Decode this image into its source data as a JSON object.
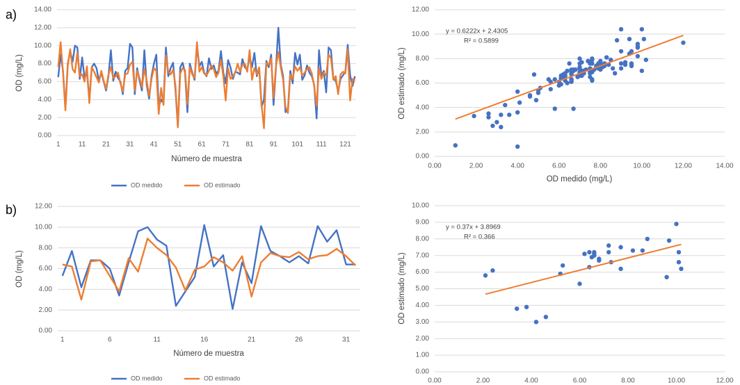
{
  "chart_data": [
    {
      "type": "line",
      "panel_label": "a)",
      "x_label": "Número de muestra",
      "y_label": "OD (mg/L)",
      "categories": [
        "1",
        null,
        null,
        null,
        null,
        null,
        null,
        null,
        null,
        null,
        "11",
        null,
        null,
        null,
        null,
        null,
        null,
        null,
        null,
        null,
        "21",
        null,
        null,
        null,
        null,
        null,
        null,
        null,
        null,
        null,
        "31",
        null,
        null,
        null,
        null,
        null,
        null,
        null,
        null,
        null,
        "41",
        null,
        null,
        null,
        null,
        null,
        null,
        null,
        null,
        null,
        "51",
        null,
        null,
        null,
        null,
        null,
        null,
        null,
        null,
        null,
        "61",
        null,
        null,
        null,
        null,
        null,
        null,
        null,
        null,
        null,
        "71",
        null,
        null,
        null,
        null,
        null,
        null,
        null,
        null,
        null,
        "81",
        null,
        null,
        null,
        null,
        null,
        null,
        null,
        null,
        null,
        "91",
        null,
        null,
        null,
        null,
        null,
        null,
        null,
        null,
        null,
        "101",
        null,
        null,
        null,
        null,
        null,
        null,
        null,
        null,
        null,
        "111",
        null,
        null,
        null,
        null,
        null,
        null,
        null,
        null,
        null,
        "121",
        null,
        null,
        null,
        null
      ],
      "series": [
        {
          "name": "OD medido",
          "color": "#4472c4",
          "values": [
            6.5,
            9.0,
            7.2,
            3.0,
            8.0,
            9.4,
            8.2,
            10.0,
            9.8,
            6.3,
            8.7,
            6.4,
            7.1,
            4.0,
            7.6,
            8.0,
            7.5,
            6.1,
            7.0,
            6.0,
            5.0,
            6.6,
            9.5,
            6.1,
            7.1,
            6.4,
            6.0,
            4.6,
            7.2,
            7.5,
            10.2,
            9.8,
            4.6,
            7.5,
            6.1,
            5.0,
            9.5,
            5.6,
            4.1,
            6.6,
            8.0,
            9.0,
            3.2,
            4.0,
            3.6,
            9.8,
            6.6,
            7.5,
            8.1,
            5.1,
            1.0,
            7.6,
            8.1,
            7.0,
            2.6,
            8.0,
            7.0,
            6.2,
            10.0,
            7.7,
            8.2,
            7.0,
            6.6,
            8.6,
            7.4,
            7.8,
            6.9,
            7.2,
            9.4,
            7.0,
            5.8,
            8.4,
            7.6,
            6.3,
            7.1,
            7.0,
            6.8,
            8.5,
            7.6,
            7.3,
            8.8,
            7.6,
            9.2,
            6.6,
            7.5,
            3.2,
            4.0,
            8.3,
            7.6,
            9.0,
            3.4,
            7.5,
            12.0,
            7.9,
            6.6,
            2.6,
            2.8,
            7.2,
            5.8,
            9.2,
            7.9,
            9.0,
            6.2,
            6.7,
            7.8,
            7.0,
            6.6,
            5.6,
            1.9,
            9.5,
            6.6,
            7.2,
            4.8,
            9.8,
            9.5,
            6.3,
            6.1,
            4.9,
            6.3,
            6.7,
            7.1,
            10.1,
            6.7,
            5.5,
            6.6
          ]
        },
        {
          "name": "OD estimado",
          "color": "#ed7d31",
          "values": [
            7.6,
            10.4,
            7.0,
            2.8,
            7.8,
            9.6,
            7.4,
            7.0,
            9.2,
            6.6,
            6.8,
            6.0,
            7.7,
            3.6,
            7.6,
            7.1,
            6.5,
            5.9,
            7.2,
            6.1,
            5.2,
            6.8,
            7.6,
            6.4,
            6.6,
            7.0,
            5.8,
            4.9,
            6.8,
            6.9,
            7.9,
            8.2,
            5.0,
            7.2,
            6.4,
            5.4,
            7.4,
            6.1,
            4.4,
            6.3,
            7.5,
            7.2,
            2.4,
            5.3,
            3.4,
            8.9,
            7.1,
            6.8,
            7.3,
            5.6,
            0.9,
            6.9,
            7.5,
            7.3,
            3.5,
            7.6,
            6.8,
            6.4,
            10.4,
            7.1,
            7.6,
            6.9,
            6.7,
            7.2,
            7.8,
            7.4,
            6.5,
            7.0,
            8.4,
            6.6,
            3.9,
            7.5,
            6.3,
            6.6,
            7.0,
            8.0,
            7.1,
            7.9,
            8.0,
            7.1,
            9.5,
            6.2,
            7.5,
            6.8,
            7.6,
            3.4,
            0.8,
            8.1,
            7.9,
            8.6,
            4.2,
            7.7,
            9.3,
            7.6,
            6.2,
            3.2,
            2.5,
            6.8,
            6.3,
            7.7,
            7.2,
            7.6,
            6.7,
            7.0,
            7.4,
            7.6,
            6.9,
            5.5,
            3.3,
            7.5,
            6.3,
            7.0,
            6.7,
            9.0,
            8.6,
            6.2,
            6.6,
            4.6,
            6.8,
            7.1,
            6.9,
            9.6,
            3.9,
            6.3,
            6.1
          ]
        }
      ],
      "ylim": [
        0,
        14
      ],
      "yticks": [
        {
          "value": 0,
          "label": "0.00"
        },
        {
          "value": 2,
          "label": "2.00"
        },
        {
          "value": 4,
          "label": "4.00"
        },
        {
          "value": 6,
          "label": "6.00"
        },
        {
          "value": 8,
          "label": "8.00"
        },
        {
          "value": 10,
          "label": "10.00"
        },
        {
          "value": 12,
          "label": "12.00"
        },
        {
          "value": 14,
          "label": "14.00"
        }
      ],
      "grid": true,
      "legend": "bottom"
    },
    {
      "type": "scatter",
      "x_label": "OD medido (mg/L)",
      "y_label": "OD estimado (mg/L)",
      "color": "#4472c4",
      "x": [
        6.5,
        9.0,
        7.2,
        3.0,
        8.0,
        9.4,
        8.2,
        10.0,
        9.8,
        6.3,
        8.7,
        6.4,
        7.1,
        4.0,
        7.6,
        8.0,
        7.5,
        6.1,
        7.0,
        6.0,
        5.0,
        6.6,
        9.5,
        6.1,
        7.1,
        6.4,
        6.0,
        4.6,
        7.2,
        7.5,
        10.2,
        9.8,
        4.6,
        7.5,
        6.1,
        5.0,
        9.5,
        5.6,
        4.1,
        6.6,
        8.0,
        9.0,
        3.2,
        4.0,
        3.6,
        9.8,
        6.6,
        7.5,
        8.1,
        5.1,
        1.0,
        7.6,
        8.1,
        7.0,
        2.6,
        8.0,
        7.0,
        6.2,
        10.0,
        7.7,
        8.2,
        7.0,
        6.6,
        8.6,
        7.4,
        7.8,
        6.9,
        7.2,
        9.4,
        7.0,
        5.8,
        8.4,
        7.6,
        6.3,
        7.1,
        7.0,
        6.8,
        8.5,
        7.6,
        7.3,
        8.8,
        7.6,
        9.2,
        6.6,
        7.5,
        3.2,
        4.0,
        8.3,
        7.6,
        9.0,
        3.4,
        7.5,
        12.0,
        7.9,
        6.6,
        2.6,
        2.8,
        7.2,
        5.8,
        9.2,
        7.9,
        9.0,
        6.2,
        6.7,
        7.8,
        7.0,
        6.6,
        5.6,
        1.9,
        9.5,
        6.6,
        7.2,
        4.8,
        9.8,
        9.5,
        6.3,
        6.1,
        4.9,
        6.3,
        6.7,
        7.1,
        10.1,
        6.7,
        5.5,
        6.6
      ],
      "y": [
        7.6,
        10.4,
        7.0,
        2.8,
        7.8,
        9.6,
        7.4,
        7.0,
        9.2,
        6.6,
        6.8,
        6.0,
        7.7,
        3.6,
        7.6,
        7.1,
        6.5,
        5.9,
        7.2,
        6.1,
        5.2,
        6.8,
        7.6,
        6.4,
        6.6,
        7.0,
        5.8,
        4.9,
        6.8,
        6.9,
        7.9,
        8.2,
        5.0,
        7.2,
        6.4,
        5.4,
        7.4,
        6.1,
        4.4,
        6.3,
        7.5,
        7.2,
        2.4,
        5.3,
        3.4,
        8.9,
        7.1,
        6.8,
        7.3,
        5.6,
        0.9,
        6.9,
        7.5,
        7.3,
        3.5,
        7.6,
        6.8,
        6.4,
        10.4,
        7.1,
        7.6,
        6.9,
        6.7,
        7.2,
        7.8,
        7.4,
        6.5,
        7.0,
        8.4,
        6.6,
        3.9,
        7.5,
        6.3,
        6.6,
        7.0,
        8.0,
        7.1,
        7.9,
        8.0,
        7.1,
        9.5,
        6.2,
        7.5,
        6.8,
        7.6,
        3.4,
        0.8,
        8.1,
        7.9,
        8.6,
        4.2,
        7.7,
        9.3,
        7.6,
        6.2,
        3.2,
        2.5,
        6.8,
        6.3,
        7.7,
        7.2,
        7.6,
        6.7,
        7.0,
        7.4,
        7.6,
        6.9,
        5.5,
        3.3,
        7.5,
        6.3,
        7.0,
        6.7,
        9.0,
        8.6,
        6.2,
        6.6,
        4.6,
        6.8,
        7.1,
        6.9,
        9.6,
        3.9,
        6.3,
        6.1
      ],
      "xlim": [
        0,
        14
      ],
      "xticks": [
        {
          "value": 0,
          "label": "0.00"
        },
        {
          "value": 2,
          "label": "2.00"
        },
        {
          "value": 4,
          "label": "4.00"
        },
        {
          "value": 6,
          "label": "6.00"
        },
        {
          "value": 8,
          "label": "8.00"
        },
        {
          "value": 10,
          "label": "10.00"
        },
        {
          "value": 12,
          "label": "12.00"
        },
        {
          "value": 14,
          "label": "14.00"
        }
      ],
      "ylim": [
        0,
        12
      ],
      "yticks": [
        {
          "value": 0,
          "label": "0.00"
        },
        {
          "value": 2,
          "label": "2.00"
        },
        {
          "value": 4,
          "label": "4.00"
        },
        {
          "value": 6,
          "label": "6.00"
        },
        {
          "value": 8,
          "label": "8.00"
        },
        {
          "value": 10,
          "label": "10.00"
        },
        {
          "value": 12,
          "label": "12.00"
        }
      ],
      "grid": true,
      "trendline": {
        "color": "#ed7d31",
        "slope": 0.6222,
        "intercept": 2.4305,
        "equation": "y = 0.6222x + 2.4305",
        "r2_label": "R² = 0.5899"
      }
    },
    {
      "type": "line",
      "panel_label": "b)",
      "x_label": "Número de muestra",
      "y_label": "OD (mg/L)",
      "categories": [
        "1",
        null,
        null,
        null,
        null,
        "6",
        null,
        null,
        null,
        null,
        "11",
        null,
        null,
        null,
        null,
        "16",
        null,
        null,
        null,
        null,
        "21",
        null,
        null,
        null,
        null,
        "26",
        null,
        null,
        null,
        null,
        "31",
        null
      ],
      "series": [
        {
          "name": "OD medido",
          "color": "#4472c4",
          "values": [
            5.3,
            7.7,
            4.2,
            6.8,
            6.8,
            6.0,
            3.4,
            6.6,
            9.6,
            10.0,
            8.8,
            8.2,
            2.4,
            3.8,
            5.2,
            10.2,
            6.2,
            7.3,
            2.1,
            6.6,
            4.6,
            10.1,
            7.7,
            7.2,
            6.6,
            7.2,
            6.5,
            10.1,
            8.6,
            9.7,
            6.4,
            6.4
          ]
        },
        {
          "name": "OD estimado",
          "color": "#ed7d31",
          "values": [
            6.4,
            6.2,
            3.0,
            6.7,
            6.8,
            5.3,
            3.8,
            7.0,
            5.7,
            8.9,
            8.0,
            7.3,
            6.1,
            3.9,
            5.9,
            6.2,
            7.1,
            6.6,
            5.8,
            7.2,
            3.3,
            6.6,
            7.5,
            7.2,
            7.1,
            7.6,
            6.9,
            7.2,
            7.3,
            7.9,
            7.2,
            6.3
          ]
        }
      ],
      "ylim": [
        0,
        12
      ],
      "yticks": [
        {
          "value": 0,
          "label": "0.00"
        },
        {
          "value": 2,
          "label": "2.00"
        },
        {
          "value": 4,
          "label": "4.00"
        },
        {
          "value": 6,
          "label": "6.00"
        },
        {
          "value": 8,
          "label": "8.00"
        },
        {
          "value": 10,
          "label": "10.00"
        },
        {
          "value": 12,
          "label": "12.00"
        }
      ],
      "grid": true,
      "legend": "bottom"
    },
    {
      "type": "scatter",
      "y_label": "OD estimado (mg/L)",
      "color": "#4472c4",
      "x": [
        5.3,
        7.7,
        4.2,
        6.8,
        6.8,
        6.0,
        3.4,
        6.6,
        9.6,
        10.0,
        8.8,
        8.2,
        2.4,
        3.8,
        5.2,
        10.2,
        6.2,
        7.3,
        2.1,
        6.6,
        4.6,
        10.1,
        7.7,
        7.2,
        6.6,
        7.2,
        6.5,
        10.1,
        8.6,
        9.7,
        6.4,
        6.4
      ],
      "y": [
        6.4,
        6.2,
        3.0,
        6.7,
        6.8,
        5.3,
        3.8,
        7.0,
        5.7,
        8.9,
        8.0,
        7.3,
        6.1,
        3.9,
        5.9,
        6.2,
        7.1,
        6.6,
        5.8,
        7.2,
        3.3,
        6.6,
        7.5,
        7.2,
        7.1,
        7.6,
        6.9,
        7.2,
        7.3,
        7.9,
        7.2,
        6.3
      ],
      "xlim": [
        0,
        12
      ],
      "xticks": [
        {
          "value": 0,
          "label": "0.00"
        },
        {
          "value": 2,
          "label": "2.00"
        },
        {
          "value": 4,
          "label": "4.00"
        },
        {
          "value": 6,
          "label": "6.00"
        },
        {
          "value": 8,
          "label": "8.00"
        },
        {
          "value": 10,
          "label": "10.00"
        },
        {
          "value": 12,
          "label": "12.00"
        }
      ],
      "ylim": [
        0,
        10
      ],
      "yticks": [
        {
          "value": 0,
          "label": "0.00"
        },
        {
          "value": 1,
          "label": "1.00"
        },
        {
          "value": 2,
          "label": "2.00"
        },
        {
          "value": 3,
          "label": "3.00"
        },
        {
          "value": 4,
          "label": "4.00"
        },
        {
          "value": 5,
          "label": "5.00"
        },
        {
          "value": 6,
          "label": "6.00"
        },
        {
          "value": 7,
          "label": "7.00"
        },
        {
          "value": 8,
          "label": "8.00"
        },
        {
          "value": 9,
          "label": "9.00"
        },
        {
          "value": 10,
          "label": "10.00"
        }
      ],
      "grid": true,
      "trendline": {
        "color": "#ed7d31",
        "slope": 0.37,
        "intercept": 3.8969,
        "equation": "y = 0.37x + 3.8969",
        "r2_label": "R² = 0.366"
      }
    }
  ]
}
